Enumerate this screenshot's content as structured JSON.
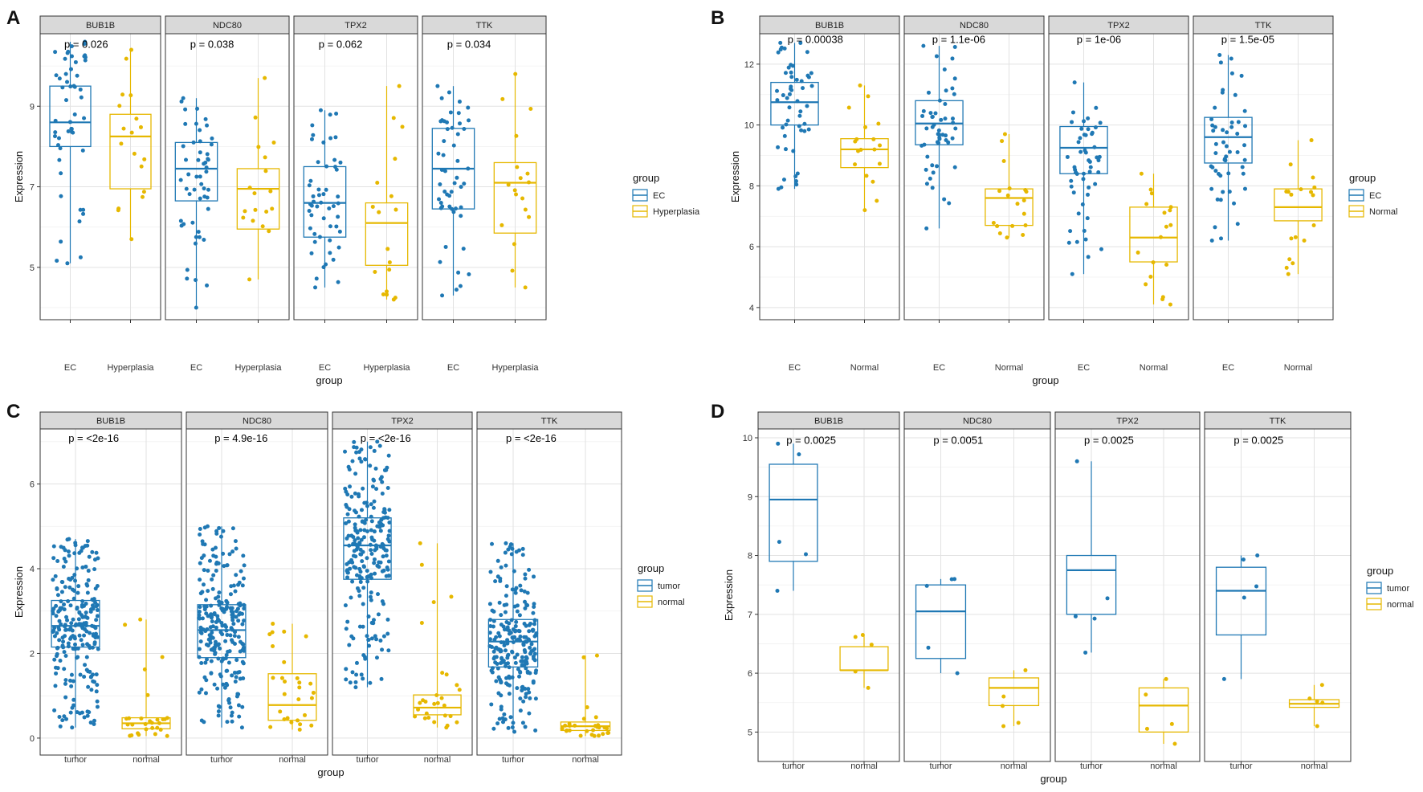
{
  "chart_data": [
    {
      "type": "boxplot",
      "panel_label": "A",
      "xlabel": "group",
      "ylabel": "Expression",
      "ylim": [
        3.7,
        10.8
      ],
      "yticks": [
        5,
        7,
        9
      ],
      "groups": [
        "EC",
        "Hyperplasia"
      ],
      "legend": {
        "title": "group",
        "entries": [
          "EC",
          "Hyperplasia"
        ],
        "position": "right"
      },
      "colors": {
        "first": "#1f78b4",
        "second": "#e6b800"
      },
      "facets": [
        {
          "name": "BUB1B",
          "p_label": "p = 0.026",
          "p_y": 10.45,
          "boxes": [
            {
              "q1": 8.0,
              "median": 8.6,
              "q3": 9.5,
              "min": 5.1,
              "max": 10.6
            },
            {
              "q1": 6.95,
              "median": 8.25,
              "q3": 8.8,
              "min": 5.7,
              "max": 10.4
            }
          ]
        },
        {
          "name": "NDC80",
          "p_label": "p = 0.038",
          "p_y": 10.45,
          "boxes": [
            {
              "q1": 6.65,
              "median": 7.45,
              "q3": 8.1,
              "min": 4.0,
              "max": 9.2
            },
            {
              "q1": 5.95,
              "median": 6.95,
              "q3": 7.45,
              "min": 4.7,
              "max": 9.7
            }
          ]
        },
        {
          "name": "TPX2",
          "p_label": "p = 0.062",
          "p_y": 10.45,
          "boxes": [
            {
              "q1": 5.75,
              "median": 6.6,
              "q3": 7.5,
              "min": 4.5,
              "max": 8.9
            },
            {
              "q1": 5.05,
              "median": 6.1,
              "q3": 6.6,
              "min": 4.2,
              "max": 9.5
            }
          ]
        },
        {
          "name": "TTK",
          "p_label": "p = 0.034",
          "p_y": 10.45,
          "boxes": [
            {
              "q1": 6.45,
              "median": 7.45,
              "q3": 8.45,
              "min": 4.3,
              "max": 9.5
            },
            {
              "q1": 5.85,
              "median": 7.1,
              "q3": 7.6,
              "min": 4.5,
              "max": 9.8
            }
          ]
        }
      ]
    },
    {
      "type": "boxplot",
      "panel_label": "B",
      "xlabel": "group",
      "ylabel": "Expression",
      "ylim": [
        3.6,
        13.0
      ],
      "yticks": [
        4,
        6,
        8,
        10,
        12
      ],
      "groups": [
        "EC",
        "Normal"
      ],
      "legend": {
        "title": "group",
        "entries": [
          "EC",
          "Normal"
        ],
        "position": "right"
      },
      "colors": {
        "first": "#1f78b4",
        "second": "#e6b800"
      },
      "facets": [
        {
          "name": "BUB1B",
          "p_label": "p = 0.00038",
          "p_y": 12.7,
          "boxes": [
            {
              "q1": 10.0,
              "median": 10.75,
              "q3": 11.4,
              "min": 7.9,
              "max": 12.7
            },
            {
              "q1": 8.6,
              "median": 9.2,
              "q3": 9.55,
              "min": 7.2,
              "max": 11.3
            }
          ]
        },
        {
          "name": "NDC80",
          "p_label": "p = 1.1e-06",
          "p_y": 12.7,
          "boxes": [
            {
              "q1": 9.35,
              "median": 10.05,
              "q3": 10.8,
              "min": 6.6,
              "max": 12.6
            },
            {
              "q1": 6.7,
              "median": 7.6,
              "q3": 7.9,
              "min": 6.3,
              "max": 9.7
            }
          ]
        },
        {
          "name": "TPX2",
          "p_label": "p = 1e-06",
          "p_y": 12.7,
          "boxes": [
            {
              "q1": 8.4,
              "median": 9.25,
              "q3": 9.95,
              "min": 5.1,
              "max": 11.4
            },
            {
              "q1": 5.5,
              "median": 6.3,
              "q3": 7.3,
              "min": 4.1,
              "max": 8.4
            }
          ]
        },
        {
          "name": "TTK",
          "p_label": "p = 1.5e-05",
          "p_y": 12.7,
          "boxes": [
            {
              "q1": 8.75,
              "median": 9.6,
              "q3": 10.25,
              "min": 6.2,
              "max": 12.3
            },
            {
              "q1": 6.85,
              "median": 7.3,
              "q3": 7.9,
              "min": 5.1,
              "max": 9.5
            }
          ]
        }
      ]
    },
    {
      "type": "boxplot",
      "panel_label": "C",
      "xlabel": "group",
      "ylabel": "Expression",
      "ylim": [
        -0.4,
        7.3
      ],
      "yticks": [
        0,
        2,
        4,
        6
      ],
      "groups": [
        "tumor",
        "normal"
      ],
      "legend": {
        "title": "group",
        "entries": [
          "tumor",
          "normal"
        ],
        "position": "right"
      },
      "colors": {
        "first": "#1f78b4",
        "second": "#e6b800"
      },
      "facets": [
        {
          "name": "BUB1B",
          "p_label": "p = <2e-16",
          "p_y": 7.0,
          "boxes": [
            {
              "q1": 2.15,
              "median": 2.65,
              "q3": 3.25,
              "min": 0.25,
              "max": 4.7
            },
            {
              "q1": 0.22,
              "median": 0.35,
              "q3": 0.48,
              "min": 0.05,
              "max": 2.8
            }
          ]
        },
        {
          "name": "NDC80",
          "p_label": "p = 4.9e-16",
          "p_y": 7.0,
          "boxes": [
            {
              "q1": 1.9,
              "median": 2.55,
              "q3": 3.15,
              "min": 0.25,
              "max": 5.0
            },
            {
              "q1": 0.42,
              "median": 0.78,
              "q3": 1.52,
              "min": 0.2,
              "max": 2.7
            }
          ]
        },
        {
          "name": "TPX2",
          "p_label": "p = <2e-16",
          "p_y": 7.0,
          "boxes": [
            {
              "q1": 3.75,
              "median": 4.55,
              "q3": 5.2,
              "min": 1.2,
              "max": 7.0
            },
            {
              "q1": 0.55,
              "median": 0.72,
              "q3": 1.02,
              "min": 0.25,
              "max": 4.6
            }
          ]
        },
        {
          "name": "TTK",
          "p_label": "p = <2e-16",
          "p_y": 7.0,
          "boxes": [
            {
              "q1": 1.68,
              "median": 2.28,
              "q3": 2.8,
              "min": 0.15,
              "max": 4.6
            },
            {
              "q1": 0.18,
              "median": 0.28,
              "q3": 0.38,
              "min": 0.05,
              "max": 1.95
            }
          ]
        }
      ]
    },
    {
      "type": "boxplot",
      "panel_label": "D",
      "xlabel": "group",
      "ylabel": "Expression",
      "ylim": [
        4.5,
        10.15
      ],
      "yticks": [
        5,
        6,
        7,
        8,
        9,
        10
      ],
      "groups": [
        "tumor",
        "normal"
      ],
      "legend": {
        "title": "group",
        "entries": [
          "tumor",
          "normal"
        ],
        "position": "right"
      },
      "colors": {
        "first": "#1f78b4",
        "second": "#e6b800"
      },
      "facets": [
        {
          "name": "BUB1B",
          "p_label": "p = 0.0025",
          "p_y": 9.9,
          "boxes": [
            {
              "q1": 7.9,
              "median": 8.95,
              "q3": 9.55,
              "min": 7.4,
              "max": 9.9
            },
            {
              "q1": 6.05,
              "median": 6.05,
              "q3": 6.45,
              "min": 5.75,
              "max": 6.65
            }
          ]
        },
        {
          "name": "NDC80",
          "p_label": "p = 0.0051",
          "p_y": 9.9,
          "boxes": [
            {
              "q1": 6.25,
              "median": 7.05,
              "q3": 7.5,
              "min": 6.0,
              "max": 7.6
            },
            {
              "q1": 5.45,
              "median": 5.75,
              "q3": 5.92,
              "min": 5.1,
              "max": 6.05
            }
          ]
        },
        {
          "name": "TPX2",
          "p_label": "p = 0.0025",
          "p_y": 9.9,
          "boxes": [
            {
              "q1": 7.0,
              "median": 7.75,
              "q3": 8.0,
              "min": 6.35,
              "max": 9.6
            },
            {
              "q1": 5.0,
              "median": 5.45,
              "q3": 5.75,
              "min": 4.8,
              "max": 5.9
            }
          ]
        },
        {
          "name": "TTK",
          "p_label": "p = 0.0025",
          "p_y": 9.9,
          "boxes": [
            {
              "q1": 6.65,
              "median": 7.4,
              "q3": 7.8,
              "min": 5.9,
              "max": 8.0
            },
            {
              "q1": 5.42,
              "median": 5.48,
              "q3": 5.55,
              "min": 5.1,
              "max": 5.8
            }
          ]
        }
      ]
    }
  ]
}
